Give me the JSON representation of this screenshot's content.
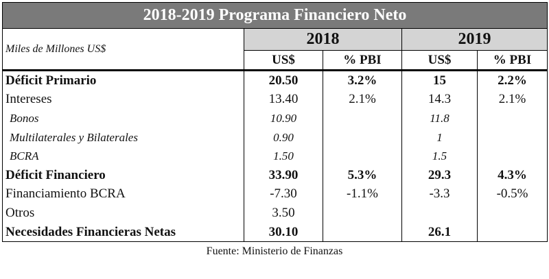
{
  "title": "2018-2019 Programa Financiero Neto",
  "table": {
    "unit_label": "Miles de Millones US$",
    "years": [
      "2018",
      "2019"
    ],
    "subheaders": [
      "US$",
      "% PBI",
      "US$",
      "% PBI"
    ],
    "rows": [
      [
        "Déficit Primario",
        "20.50",
        "3.2%",
        "15",
        "2.2%"
      ],
      [
        "Intereses",
        "13.40",
        "2.1%",
        "14.3",
        "2.1%"
      ],
      [
        "Bonos",
        "10.90",
        null,
        "11.8",
        null
      ],
      [
        "Multilaterales y Bilaterales",
        "0.90",
        null,
        "1",
        null
      ],
      [
        "BCRA",
        "1.50",
        null,
        "1.5",
        null
      ],
      [
        "Déficit Financiero",
        "33.90",
        "5.3%",
        "29.3",
        "4.3%"
      ],
      [
        "Financiamiento BCRA",
        "-7.30",
        "-1.1%",
        "-3.3",
        "-0.5%"
      ],
      [
        "Otros",
        "3.50",
        null,
        null,
        null
      ],
      [
        "Necesidades Financieras Netas",
        "30.10",
        null,
        "26.1",
        null
      ]
    ]
  },
  "source": "Fuente: Ministerio de Finanzas"
}
